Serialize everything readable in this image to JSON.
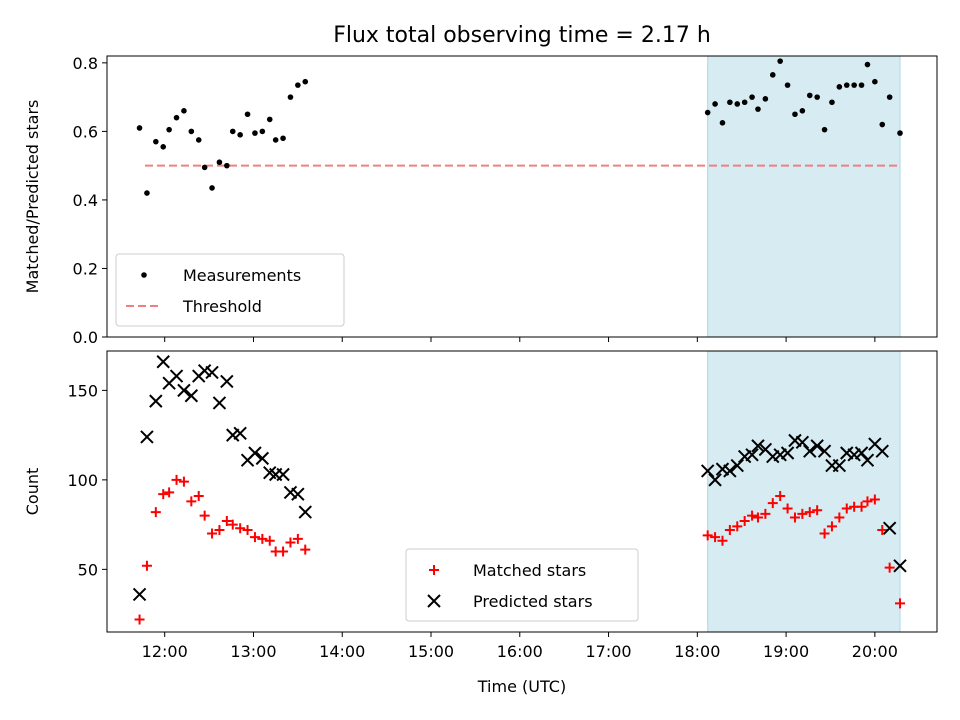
{
  "chart_data": {
    "title": "Flux total observing time = 2.17 h",
    "xlabel": "Time (UTC)",
    "x_ticks": [
      "12:00",
      "13:00",
      "14:00",
      "15:00",
      "16:00",
      "17:00",
      "18:00",
      "19:00",
      "20:00"
    ],
    "x_range": [
      "11:21",
      "20:42"
    ],
    "highlight_span": [
      "18:07",
      "20:17"
    ],
    "highlight_color": "#add8e6",
    "panels": [
      {
        "type": "scatter",
        "ylabel": "Matched/Predicted stars",
        "ylim": [
          0,
          0.82
        ],
        "y_ticks": [
          "0.0",
          "0.2",
          "0.4",
          "0.6",
          "0.8"
        ],
        "legend_position": "lower-left",
        "threshold": {
          "name": "Threshold",
          "value": 0.5,
          "color": "#f08080"
        },
        "series": [
          {
            "name": "Measurements",
            "color": "#000000",
            "points": [
              [
                "11:43",
                0.61
              ],
              [
                "11:48",
                0.42
              ],
              [
                "11:54",
                0.57
              ],
              [
                "11:59",
                0.555
              ],
              [
                "12:03",
                0.605
              ],
              [
                "12:08",
                0.64
              ],
              [
                "12:13",
                0.66
              ],
              [
                "12:18",
                0.6
              ],
              [
                "12:23",
                0.575
              ],
              [
                "12:27",
                0.495
              ],
              [
                "12:32",
                0.435
              ],
              [
                "12:37",
                0.51
              ],
              [
                "12:42",
                0.5
              ],
              [
                "12:46",
                0.6
              ],
              [
                "12:51",
                0.59
              ],
              [
                "12:56",
                0.65
              ],
              [
                "13:01",
                0.595
              ],
              [
                "13:06",
                0.6
              ],
              [
                "13:11",
                0.635
              ],
              [
                "13:15",
                0.575
              ],
              [
                "13:20",
                0.58
              ],
              [
                "13:25",
                0.7
              ],
              [
                "13:30",
                0.735
              ],
              [
                "13:35",
                0.745
              ],
              [
                "18:07",
                0.655
              ],
              [
                "18:12",
                0.68
              ],
              [
                "18:17",
                0.625
              ],
              [
                "18:22",
                0.685
              ],
              [
                "18:27",
                0.68
              ],
              [
                "18:32",
                0.685
              ],
              [
                "18:37",
                0.7
              ],
              [
                "18:41",
                0.665
              ],
              [
                "18:46",
                0.695
              ],
              [
                "18:51",
                0.765
              ],
              [
                "18:56",
                0.805
              ],
              [
                "19:01",
                0.735
              ],
              [
                "19:06",
                0.65
              ],
              [
                "19:11",
                0.66
              ],
              [
                "19:16",
                0.705
              ],
              [
                "19:21",
                0.7
              ],
              [
                "19:26",
                0.605
              ],
              [
                "19:31",
                0.685
              ],
              [
                "19:36",
                0.73
              ],
              [
                "19:41",
                0.735
              ],
              [
                "19:46",
                0.735
              ],
              [
                "19:51",
                0.735
              ],
              [
                "19:55",
                0.795
              ],
              [
                "20:00",
                0.745
              ],
              [
                "20:05",
                0.62
              ],
              [
                "20:10",
                0.7
              ],
              [
                "20:17",
                0.595
              ]
            ]
          }
        ]
      },
      {
        "type": "scatter",
        "ylabel": "Count",
        "ylim": [
          15,
          172
        ],
        "y_ticks": [
          "50",
          "100",
          "150"
        ],
        "legend_position": "lower-center",
        "series": [
          {
            "name": "Matched stars",
            "color": "#ff0000",
            "marker": "plus",
            "points": [
              [
                "11:43",
                22
              ],
              [
                "11:48",
                52
              ],
              [
                "11:54",
                82
              ],
              [
                "11:59",
                92
              ],
              [
                "12:03",
                93
              ],
              [
                "12:08",
                100
              ],
              [
                "12:13",
                99
              ],
              [
                "12:18",
                88
              ],
              [
                "12:23",
                91
              ],
              [
                "12:27",
                80
              ],
              [
                "12:32",
                70
              ],
              [
                "12:37",
                72
              ],
              [
                "12:42",
                77
              ],
              [
                "12:46",
                75
              ],
              [
                "12:51",
                73
              ],
              [
                "12:56",
                72
              ],
              [
                "13:01",
                68
              ],
              [
                "13:06",
                67
              ],
              [
                "13:11",
                66
              ],
              [
                "13:15",
                60
              ],
              [
                "13:20",
                60
              ],
              [
                "13:25",
                65
              ],
              [
                "13:30",
                67
              ],
              [
                "13:35",
                61
              ],
              [
                "18:07",
                69
              ],
              [
                "18:12",
                68
              ],
              [
                "18:17",
                66
              ],
              [
                "18:22",
                72
              ],
              [
                "18:27",
                74
              ],
              [
                "18:32",
                77
              ],
              [
                "18:37",
                80
              ],
              [
                "18:41",
                79
              ],
              [
                "18:46",
                81
              ],
              [
                "18:51",
                87
              ],
              [
                "18:56",
                91
              ],
              [
                "19:01",
                84
              ],
              [
                "19:06",
                79
              ],
              [
                "19:11",
                81
              ],
              [
                "19:16",
                82
              ],
              [
                "19:21",
                83
              ],
              [
                "19:26",
                70
              ],
              [
                "19:31",
                74
              ],
              [
                "19:36",
                79
              ],
              [
                "19:41",
                84
              ],
              [
                "19:46",
                85
              ],
              [
                "19:51",
                85
              ],
              [
                "19:55",
                88
              ],
              [
                "20:00",
                89
              ],
              [
                "20:05",
                72
              ],
              [
                "20:10",
                51
              ],
              [
                "20:17",
                31
              ]
            ]
          },
          {
            "name": "Predicted stars",
            "color": "#000000",
            "marker": "x",
            "points": [
              [
                "11:43",
                36
              ],
              [
                "11:48",
                124
              ],
              [
                "11:54",
                144
              ],
              [
                "11:59",
                166
              ],
              [
                "12:03",
                154
              ],
              [
                "12:08",
                158
              ],
              [
                "12:13",
                150
              ],
              [
                "12:18",
                147
              ],
              [
                "12:23",
                158
              ],
              [
                "12:27",
                161
              ],
              [
                "12:32",
                160
              ],
              [
                "12:37",
                143
              ],
              [
                "12:42",
                155
              ],
              [
                "12:46",
                125
              ],
              [
                "12:51",
                126
              ],
              [
                "12:56",
                111
              ],
              [
                "13:01",
                115
              ],
              [
                "13:06",
                112
              ],
              [
                "13:11",
                104
              ],
              [
                "13:15",
                103
              ],
              [
                "13:20",
                103
              ],
              [
                "13:25",
                93
              ],
              [
                "13:30",
                92
              ],
              [
                "13:35",
                82
              ],
              [
                "18:07",
                105
              ],
              [
                "18:12",
                100
              ],
              [
                "18:17",
                106
              ],
              [
                "18:22",
                105
              ],
              [
                "18:27",
                108
              ],
              [
                "18:32",
                113
              ],
              [
                "18:37",
                114
              ],
              [
                "18:41",
                119
              ],
              [
                "18:46",
                117
              ],
              [
                "18:51",
                113
              ],
              [
                "18:56",
                114
              ],
              [
                "19:01",
                115
              ],
              [
                "19:06",
                122
              ],
              [
                "19:11",
                121
              ],
              [
                "19:16",
                116
              ],
              [
                "19:21",
                119
              ],
              [
                "19:26",
                116
              ],
              [
                "19:31",
                108
              ],
              [
                "19:36",
                108
              ],
              [
                "19:41",
                115
              ],
              [
                "19:46",
                114
              ],
              [
                "19:51",
                115
              ],
              [
                "19:55",
                111
              ],
              [
                "20:00",
                120
              ],
              [
                "20:05",
                116
              ],
              [
                "20:10",
                73
              ],
              [
                "20:17",
                52
              ]
            ]
          }
        ]
      }
    ]
  }
}
